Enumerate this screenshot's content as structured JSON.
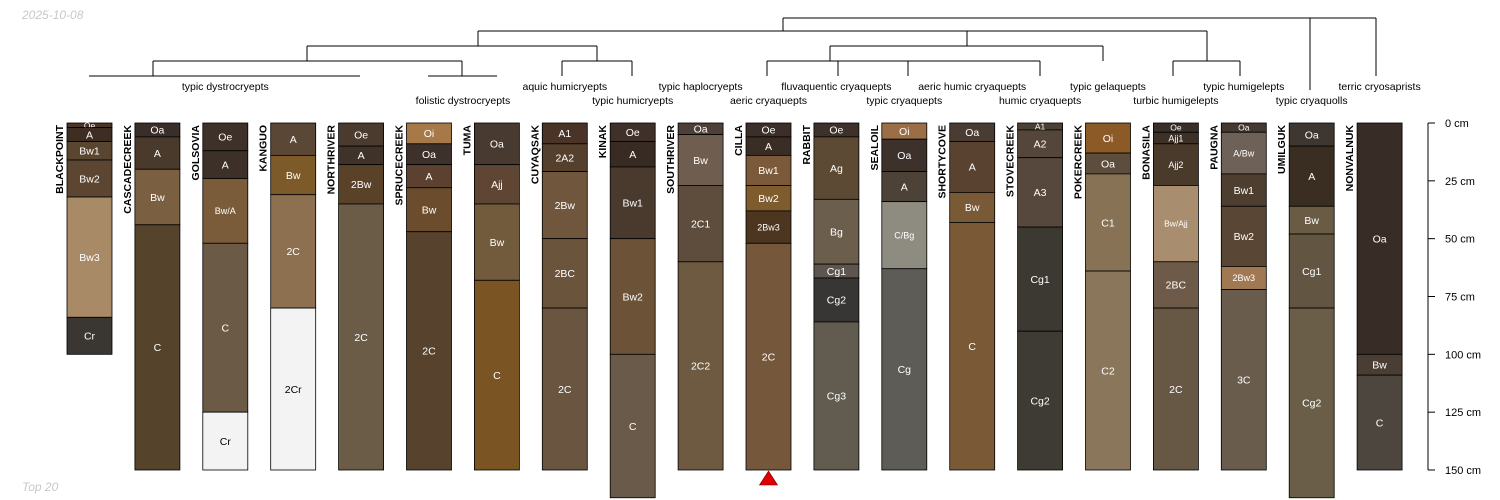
{
  "header": {
    "date": "2025-10-08"
  },
  "footer": {
    "caption": "Top 20"
  },
  "depth_axis": {
    "unit": "cm",
    "max_depth": 150,
    "ticks": [
      {
        "depth": 0,
        "label": "0 cm"
      },
      {
        "depth": 25,
        "label": "25 cm"
      },
      {
        "depth": 50,
        "label": "50 cm"
      },
      {
        "depth": 75,
        "label": "75 cm"
      },
      {
        "depth": 100,
        "label": "100 cm"
      },
      {
        "depth": 125,
        "label": "125 cm"
      },
      {
        "depth": 150,
        "label": "150 cm"
      }
    ]
  },
  "marker": {
    "profile": "CILLA",
    "color": "#e00000"
  },
  "taxa": [
    {
      "label": "typic dystrocryepts",
      "row": 1,
      "from": 0,
      "to": 4
    },
    {
      "label": "folistic dystrocryepts",
      "row": 2,
      "from": 5,
      "to": 6
    },
    {
      "label": "aquic humicryepts",
      "row": 1,
      "from": 7,
      "to": 7
    },
    {
      "label": "typic humicryepts",
      "row": 2,
      "from": 8,
      "to": 8
    },
    {
      "label": "typic haplocryepts",
      "row": 1,
      "from": 9,
      "to": 9
    },
    {
      "label": "aeric cryaquepts",
      "row": 2,
      "from": 10,
      "to": 10
    },
    {
      "label": "fluvaquentic cryaquepts",
      "row": 1,
      "from": 11,
      "to": 11
    },
    {
      "label": "typic cryaquepts",
      "row": 2,
      "from": 12,
      "to": 12
    },
    {
      "label": "aeric humic cryaquepts",
      "row": 1,
      "from": 13,
      "to": 13
    },
    {
      "label": "humic cryaquepts",
      "row": 2,
      "from": 14,
      "to": 14
    },
    {
      "label": "typic gelaquepts",
      "row": 1,
      "from": 15,
      "to": 15
    },
    {
      "label": "turbic humigelepts",
      "row": 2,
      "from": 16,
      "to": 16
    },
    {
      "label": "typic humigelepts",
      "row": 1,
      "from": 17,
      "to": 17
    },
    {
      "label": "typic cryaquolls",
      "row": 2,
      "from": 18,
      "to": 18
    },
    {
      "label": "terric cryosaprists",
      "row": 1,
      "from": 19,
      "to": 19
    }
  ],
  "profiles": [
    {
      "name": "BLACKPOINT",
      "horizons": [
        {
          "name": "Oe",
          "top": 0,
          "bottom": 2,
          "color": "#4a3526"
        },
        {
          "name": "A",
          "top": 2,
          "bottom": 8,
          "color": "#3e2d22"
        },
        {
          "name": "Bw1",
          "top": 8,
          "bottom": 16,
          "color": "#5a4530"
        },
        {
          "name": "Bw2",
          "top": 16,
          "bottom": 32,
          "color": "#5c4632"
        },
        {
          "name": "Bw3",
          "top": 32,
          "bottom": 84,
          "color": "#a98a66"
        },
        {
          "name": "Cr",
          "top": 84,
          "bottom": 100,
          "color": "#3a3631"
        }
      ]
    },
    {
      "name": "CASCADECREEK",
      "horizons": [
        {
          "name": "Oa",
          "top": 0,
          "bottom": 6,
          "color": "#3a2e28"
        },
        {
          "name": "A",
          "top": 6,
          "bottom": 20,
          "color": "#4a3a2c"
        },
        {
          "name": "Bw",
          "top": 20,
          "bottom": 44,
          "color": "#7a6040"
        },
        {
          "name": "C",
          "top": 44,
          "bottom": 150,
          "color": "#55432b"
        }
      ]
    },
    {
      "name": "GOLSOVIA",
      "horizons": [
        {
          "name": "Oe",
          "top": 0,
          "bottom": 12,
          "color": "#3e3129"
        },
        {
          "name": "A",
          "top": 12,
          "bottom": 24,
          "color": "#3c3029"
        },
        {
          "name": "Bw/A",
          "top": 24,
          "bottom": 52,
          "color": "#7a5c3a"
        },
        {
          "name": "C",
          "top": 52,
          "bottom": 125,
          "color": "#6a5a46"
        },
        {
          "name": "Cr",
          "top": 125,
          "bottom": 150,
          "color": "#f3f3f3"
        }
      ]
    },
    {
      "name": "KANGUO",
      "horizons": [
        {
          "name": "A",
          "top": 0,
          "bottom": 14,
          "color": "#5a4735"
        },
        {
          "name": "Bw",
          "top": 14,
          "bottom": 31,
          "color": "#7d5a2a"
        },
        {
          "name": "2C",
          "top": 31,
          "bottom": 80,
          "color": "#8c7050"
        },
        {
          "name": "2Cr",
          "top": 80,
          "bottom": 150,
          "color": "#f3f3f3"
        }
      ]
    },
    {
      "name": "NORTHRIVER",
      "horizons": [
        {
          "name": "Oe",
          "top": 0,
          "bottom": 10,
          "color": "#4b3a2e"
        },
        {
          "name": "A",
          "top": 10,
          "bottom": 18,
          "color": "#3f3228"
        },
        {
          "name": "2Bw",
          "top": 18,
          "bottom": 35,
          "color": "#5a4228"
        },
        {
          "name": "2C",
          "top": 35,
          "bottom": 150,
          "color": "#6b5c47"
        }
      ]
    },
    {
      "name": "SPRUCECREEK",
      "horizons": [
        {
          "name": "Oi",
          "top": 0,
          "bottom": 9,
          "color": "#a77848"
        },
        {
          "name": "Oa",
          "top": 9,
          "bottom": 18,
          "color": "#3e302a"
        },
        {
          "name": "A",
          "top": 18,
          "bottom": 28,
          "color": "#5c4130"
        },
        {
          "name": "Bw",
          "top": 28,
          "bottom": 47,
          "color": "#6b4d2e"
        },
        {
          "name": "2C",
          "top": 47,
          "bottom": 150,
          "color": "#57432d"
        }
      ]
    },
    {
      "name": "TUMA",
      "horizons": [
        {
          "name": "Oa",
          "top": 0,
          "bottom": 18,
          "color": "#483a31"
        },
        {
          "name": "Ajj",
          "top": 18,
          "bottom": 35,
          "color": "#5e4534"
        },
        {
          "name": "Bw",
          "top": 35,
          "bottom": 68,
          "color": "#725a3c"
        },
        {
          "name": "C",
          "top": 68,
          "bottom": 150,
          "color": "#7a5422"
        }
      ]
    },
    {
      "name": "CUYAQSAK",
      "horizons": [
        {
          "name": "A1",
          "top": 0,
          "bottom": 9,
          "color": "#4a3428"
        },
        {
          "name": "2A2",
          "top": 9,
          "bottom": 21,
          "color": "#55402e"
        },
        {
          "name": "2Bw",
          "top": 21,
          "bottom": 50,
          "color": "#6f563c"
        },
        {
          "name": "2BC",
          "top": 50,
          "bottom": 80,
          "color": "#6a543c"
        },
        {
          "name": "2C",
          "top": 80,
          "bottom": 150,
          "color": "#6a5640"
        }
      ]
    },
    {
      "name": "KINAK",
      "horizons": [
        {
          "name": "Oe",
          "top": 0,
          "bottom": 8,
          "color": "#3f3029"
        },
        {
          "name": "A",
          "top": 8,
          "bottom": 19,
          "color": "#382b24"
        },
        {
          "name": "Bw1",
          "top": 19,
          "bottom": 50,
          "color": "#4a3a2e"
        },
        {
          "name": "Bw2",
          "top": 50,
          "bottom": 100,
          "color": "#6c5236"
        },
        {
          "name": "C",
          "top": 100,
          "bottom": 162,
          "color": "#6a5a49"
        }
      ]
    },
    {
      "name": "SOUTHRIVER",
      "horizons": [
        {
          "name": "Oa",
          "top": 0,
          "bottom": 5,
          "color": "#4e4038"
        },
        {
          "name": "Bw",
          "top": 5,
          "bottom": 27,
          "color": "#6f5e50"
        },
        {
          "name": "2C1",
          "top": 27,
          "bottom": 60,
          "color": "#5e4d3c"
        },
        {
          "name": "2C2",
          "top": 60,
          "bottom": 150,
          "color": "#6e5a40"
        }
      ]
    },
    {
      "name": "CILLA",
      "horizons": [
        {
          "name": "Oe",
          "top": 0,
          "bottom": 6,
          "color": "#3c2e28"
        },
        {
          "name": "A",
          "top": 6,
          "bottom": 14,
          "color": "#3a2d26"
        },
        {
          "name": "Bw1",
          "top": 14,
          "bottom": 27,
          "color": "#7a5a3a"
        },
        {
          "name": "Bw2",
          "top": 27,
          "bottom": 38,
          "color": "#7e5c2e"
        },
        {
          "name": "2Bw3",
          "top": 38,
          "bottom": 52,
          "color": "#4c3620"
        },
        {
          "name": "2C",
          "top": 52,
          "bottom": 150,
          "color": "#75583c"
        }
      ]
    },
    {
      "name": "RABBIT",
      "horizons": [
        {
          "name": "Oe",
          "top": 0,
          "bottom": 6,
          "color": "#3e302a"
        },
        {
          "name": "Ag",
          "top": 6,
          "bottom": 33,
          "color": "#5c4a34"
        },
        {
          "name": "Bg",
          "top": 33,
          "bottom": 61,
          "color": "#6c5e4c"
        },
        {
          "name": "Cg1",
          "top": 61,
          "bottom": 67,
          "color": "#5e564e"
        },
        {
          "name": "Cg2",
          "top": 67,
          "bottom": 86,
          "color": "#383635"
        },
        {
          "name": "Cg3",
          "top": 86,
          "bottom": 150,
          "color": "#615b50"
        }
      ]
    },
    {
      "name": "SEALOIL",
      "horizons": [
        {
          "name": "Oi",
          "top": 0,
          "bottom": 7,
          "color": "#9c6e48"
        },
        {
          "name": "Oa",
          "top": 7,
          "bottom": 21,
          "color": "#3c312b"
        },
        {
          "name": "A",
          "top": 21,
          "bottom": 34,
          "color": "#4c4238"
        },
        {
          "name": "C/Bg",
          "top": 34,
          "bottom": 63,
          "color": "#8e8c80"
        },
        {
          "name": "Cg",
          "top": 63,
          "bottom": 150,
          "color": "#5e5c56"
        }
      ]
    },
    {
      "name": "SHORTYCOVE",
      "horizons": [
        {
          "name": "Oa",
          "top": 0,
          "bottom": 8,
          "color": "#4a3c32"
        },
        {
          "name": "A",
          "top": 8,
          "bottom": 30,
          "color": "#5a4230"
        },
        {
          "name": "Bw",
          "top": 30,
          "bottom": 43,
          "color": "#7a5a36"
        },
        {
          "name": "C",
          "top": 43,
          "bottom": 150,
          "color": "#7a5a36"
        }
      ]
    },
    {
      "name": "STOVECREEK",
      "horizons": [
        {
          "name": "A1",
          "top": 0,
          "bottom": 3,
          "color": "#4a4034"
        },
        {
          "name": "A2",
          "top": 3,
          "bottom": 15,
          "color": "#54463a"
        },
        {
          "name": "A3",
          "top": 15,
          "bottom": 45,
          "color": "#56483c"
        },
        {
          "name": "Cg1",
          "top": 45,
          "bottom": 90,
          "color": "#3c3832"
        },
        {
          "name": "Cg2",
          "top": 90,
          "bottom": 150,
          "color": "#3e3a34"
        }
      ]
    },
    {
      "name": "POKERCREEK",
      "horizons": [
        {
          "name": "Oi",
          "top": 0,
          "bottom": 13,
          "color": "#8c5a26"
        },
        {
          "name": "Oa",
          "top": 13,
          "bottom": 22,
          "color": "#5c4d3c"
        },
        {
          "name": "C1",
          "top": 22,
          "bottom": 64,
          "color": "#877256"
        },
        {
          "name": "C2",
          "top": 64,
          "bottom": 150,
          "color": "#8a765a"
        }
      ]
    },
    {
      "name": "BONASILA",
      "horizons": [
        {
          "name": "Oe",
          "top": 0,
          "bottom": 4,
          "color": "#3a2e28"
        },
        {
          "name": "Ajj1",
          "top": 4,
          "bottom": 9,
          "color": "#3c3028"
        },
        {
          "name": "Ajj2",
          "top": 9,
          "bottom": 27,
          "color": "#4a3a2c"
        },
        {
          "name": "Bw/Ajj",
          "top": 27,
          "bottom": 60,
          "color": "#a88d6e"
        },
        {
          "name": "2BC",
          "top": 60,
          "bottom": 80,
          "color": "#6e5a48"
        },
        {
          "name": "2C",
          "top": 80,
          "bottom": 150,
          "color": "#675846"
        }
      ]
    },
    {
      "name": "PAUGNA",
      "horizons": [
        {
          "name": "Oa",
          "top": 0,
          "bottom": 4,
          "color": "#443830"
        },
        {
          "name": "A/Bw",
          "top": 4,
          "bottom": 22,
          "color": "#6e6258"
        },
        {
          "name": "Bw1",
          "top": 22,
          "bottom": 36,
          "color": "#4e3e30"
        },
        {
          "name": "Bw2",
          "top": 36,
          "bottom": 62,
          "color": "#5a4634"
        },
        {
          "name": "2Bw3",
          "top": 62,
          "bottom": 72,
          "color": "#a07852"
        },
        {
          "name": "3C",
          "top": 72,
          "bottom": 150,
          "color": "#6a5c4c"
        }
      ]
    },
    {
      "name": "UMILGUK",
      "horizons": [
        {
          "name": "Oa",
          "top": 0,
          "bottom": 10,
          "color": "#3e3630"
        },
        {
          "name": "A",
          "top": 10,
          "bottom": 36,
          "color": "#3a2e22"
        },
        {
          "name": "Bw",
          "top": 36,
          "bottom": 48,
          "color": "#6a5c44"
        },
        {
          "name": "Cg1",
          "top": 48,
          "bottom": 80,
          "color": "#625642"
        },
        {
          "name": "Cg2",
          "top": 80,
          "bottom": 162,
          "color": "#6a5e48"
        }
      ]
    },
    {
      "name": "NONVALNUK",
      "horizons": [
        {
          "name": "Oa",
          "top": 0,
          "bottom": 100,
          "color": "#382c26"
        },
        {
          "name": "Bw",
          "top": 100,
          "bottom": 109,
          "color": "#4a3e34"
        },
        {
          "name": "C",
          "top": 109,
          "bottom": 150,
          "color": "#4c463e"
        }
      ]
    }
  ]
}
